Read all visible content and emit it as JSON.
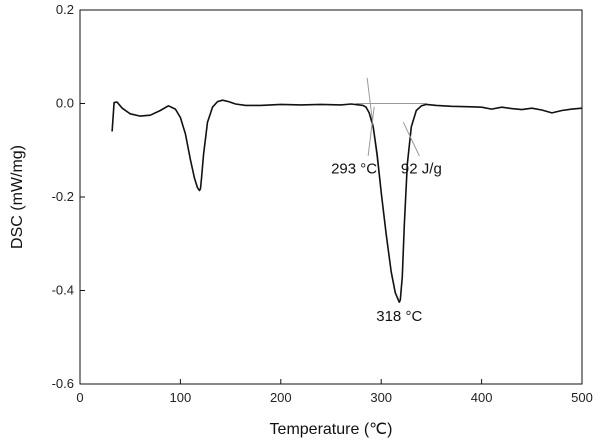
{
  "chart_data": {
    "type": "line",
    "title": "",
    "xlabel": "Temperature (℃)",
    "ylabel": "DSC (mW/mg)",
    "xlim": [
      0,
      500
    ],
    "ylim": [
      -0.6,
      0.2
    ],
    "x_ticks": [
      0,
      100,
      200,
      300,
      400,
      500
    ],
    "y_ticks": [
      -0.6,
      -0.4,
      -0.2,
      0.0,
      0.2
    ],
    "x_tick_labels": [
      "0",
      "100",
      "200",
      "300",
      "400",
      "500"
    ],
    "y_tick_labels": [
      "-0.6",
      "-0.4",
      "-0.2",
      "0.0",
      "0.2"
    ],
    "grid": false,
    "legend": "none",
    "line_color": "#111111",
    "series": [
      {
        "x": [
          32,
          34,
          37,
          42,
          50,
          60,
          70,
          80,
          88,
          95,
          100,
          105,
          110,
          114,
          117,
          119,
          120,
          121,
          123,
          127,
          132,
          137,
          142,
          148,
          155,
          165,
          180,
          200,
          220,
          240,
          260,
          270,
          278,
          282,
          285,
          288,
          292,
          296,
          300,
          305,
          310,
          314,
          317,
          318,
          319,
          321,
          323,
          326,
          330,
          335,
          340,
          345,
          355,
          370,
          390,
          400,
          410,
          420,
          430,
          440,
          450,
          460,
          470,
          480,
          490,
          500
        ],
        "y": [
          -0.06,
          0.002,
          0.003,
          -0.01,
          -0.022,
          -0.027,
          -0.025,
          -0.015,
          -0.005,
          -0.012,
          -0.03,
          -0.065,
          -0.12,
          -0.16,
          -0.18,
          -0.186,
          -0.182,
          -0.16,
          -0.11,
          -0.04,
          -0.008,
          0.004,
          0.007,
          0.004,
          -0.001,
          -0.004,
          -0.004,
          -0.002,
          -0.003,
          -0.002,
          -0.003,
          -0.001,
          -0.003,
          -0.004,
          -0.008,
          -0.02,
          -0.05,
          -0.11,
          -0.19,
          -0.28,
          -0.36,
          -0.405,
          -0.42,
          -0.425,
          -0.42,
          -0.37,
          -0.26,
          -0.13,
          -0.05,
          -0.015,
          -0.005,
          -0.002,
          -0.004,
          -0.006,
          -0.007,
          -0.008,
          -0.012,
          -0.008,
          -0.011,
          -0.013,
          -0.01,
          -0.014,
          -0.02,
          -0.015,
          -0.012,
          -0.01
        ]
      }
    ],
    "baseline": {
      "y": 0.0,
      "x_start": 275,
      "x_end": 345
    },
    "onset_tangent": {
      "x1": 286,
      "y1": 0.055,
      "x2": 300,
      "y2": -0.19
    },
    "annotations": [
      {
        "text": "293 °C",
        "x": 273,
        "y": -0.15,
        "leader": [
          [
            287,
            -0.112
          ],
          [
            293,
            -0.007
          ]
        ]
      },
      {
        "text": "92 J/g",
        "x": 340,
        "y": -0.15,
        "leader": [
          [
            338,
            -0.112
          ],
          [
            322,
            -0.04
          ]
        ]
      },
      {
        "text": "318 °C",
        "x": 318,
        "y": -0.465
      }
    ]
  }
}
